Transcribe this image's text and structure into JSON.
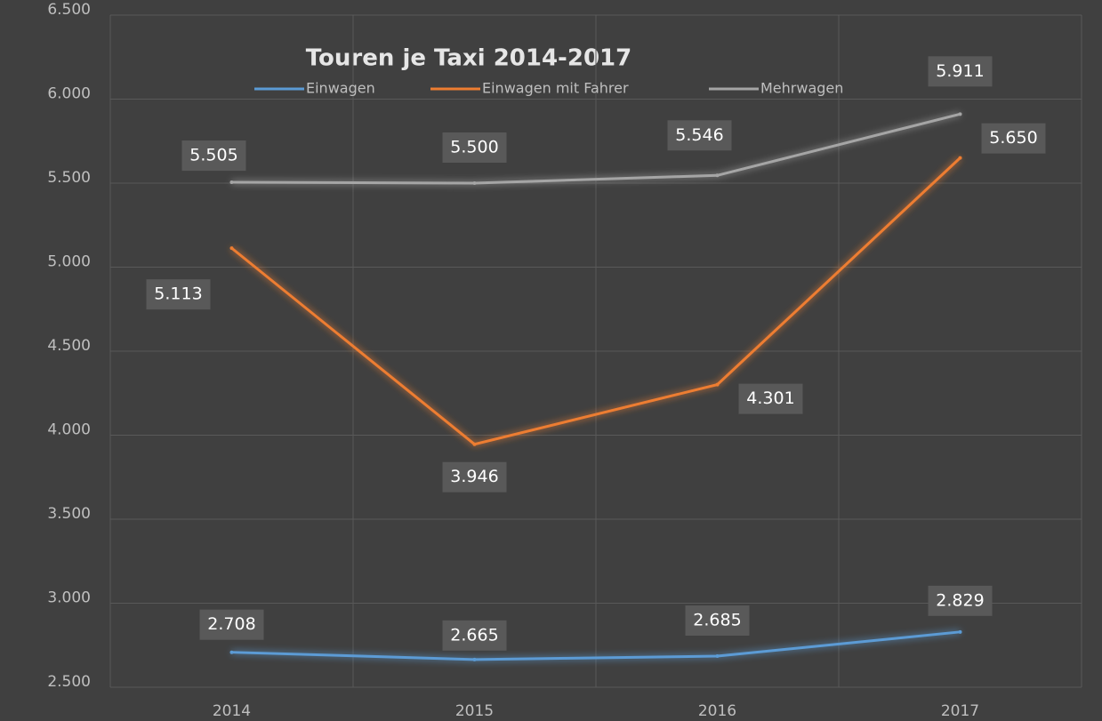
{
  "chart_data": {
    "type": "line",
    "title": "Touren je Taxi 2014-2017",
    "categories": [
      "2014",
      "2015",
      "2016",
      "2017"
    ],
    "series": [
      {
        "name": "Einwagen",
        "color": "#5b9bd5",
        "values": [
          2708,
          2665,
          2685,
          2829
        ],
        "value_labels": [
          "2.708",
          "2.665",
          "2.685",
          "2.829"
        ]
      },
      {
        "name": "Einwagen mit Fahrer",
        "color": "#ed7d31",
        "values": [
          5113,
          3946,
          4301,
          5650
        ],
        "value_labels": [
          "5.113",
          "3.946",
          "4.301",
          "5.650"
        ]
      },
      {
        "name": "Mehrwagen",
        "color": "#a5a5a5",
        "values": [
          5505,
          5500,
          5546,
          5911
        ],
        "value_labels": [
          "5.505",
          "5.500",
          "5.546",
          "5.911"
        ]
      }
    ],
    "ylim": [
      2500,
      6500
    ],
    "yticks": [
      {
        "value": 2500,
        "label": "2.500"
      },
      {
        "value": 3000,
        "label": "3.000"
      },
      {
        "value": 3500,
        "label": "3.500"
      },
      {
        "value": 4000,
        "label": "4.000"
      },
      {
        "value": 4500,
        "label": "4.500"
      },
      {
        "value": 5000,
        "label": "5.000"
      },
      {
        "value": 5500,
        "label": "5.500"
      },
      {
        "value": 6000,
        "label": "6.000"
      },
      {
        "value": 6500,
        "label": "6.500"
      }
    ],
    "grid": true,
    "legend": "top"
  }
}
